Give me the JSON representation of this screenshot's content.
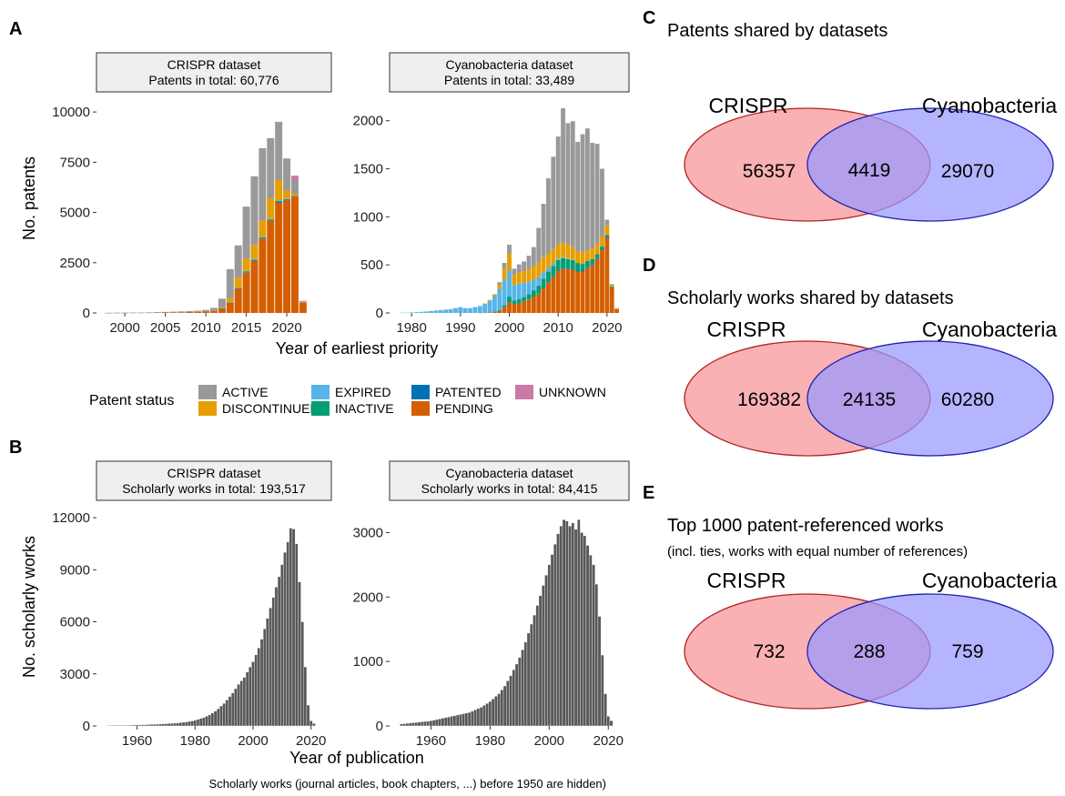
{
  "panel_letters": {
    "A": "A",
    "B": "B",
    "C": "C",
    "D": "D",
    "E": "E"
  },
  "patent_charts": {
    "ylabel": "No. patents",
    "xlabel": "Year of earliest priority",
    "statuses": [
      "ACTIVE",
      "DISCONTINUED",
      "EXPIRED",
      "INACTIVE",
      "PATENTED",
      "PENDING",
      "UNKNOWN"
    ],
    "status_colors": {
      "ACTIVE": "#999999",
      "DISCONTINUED": "#E69F00",
      "EXPIRED": "#56B4E9",
      "INACTIVE": "#009E73",
      "PATENTED": "#0072B2",
      "PENDING": "#D55E00",
      "UNKNOWN": "#CC79A7"
    }
  },
  "legend": {
    "title": "Patent status",
    "items": [
      {
        "key": "ACTIVE",
        "label": "ACTIVE"
      },
      {
        "key": "DISCONTINUED",
        "label": "DISCONTINUED"
      },
      {
        "key": "EXPIRED",
        "label": "EXPIRED"
      },
      {
        "key": "INACTIVE",
        "label": "INACTIVE"
      },
      {
        "key": "PATENTED",
        "label": "PATENTED"
      },
      {
        "key": "PENDING",
        "label": "PENDING"
      },
      {
        "key": "UNKNOWN",
        "label": "UNKNOWN"
      }
    ]
  },
  "works_charts": {
    "ylabel": "No. scholarly works",
    "xlabel": "Year of publication",
    "note": "Scholarly works (journal articles, book chapters, ...) before 1950 are hidden)"
  },
  "chart_data": [
    {
      "id": "A-crispr",
      "type": "bar",
      "stacked": true,
      "strip": [
        "CRISPR dataset",
        "Patents in total: 60,776"
      ],
      "xlim": [
        1996.5,
        2025.5
      ],
      "xticks": [
        2000,
        2005,
        2010,
        2015,
        2020
      ],
      "ylim": [
        0,
        11000
      ],
      "yticks": [
        0,
        2500,
        5000,
        7500,
        10000
      ],
      "x": [
        1998,
        1999,
        2000,
        2001,
        2002,
        2003,
        2004,
        2005,
        2006,
        2007,
        2008,
        2009,
        2010,
        2011,
        2012,
        2013,
        2014,
        2015,
        2016,
        2017,
        2018,
        2019,
        2020,
        2021,
        2022
      ],
      "series": [
        {
          "name": "PENDING",
          "values": [
            2,
            4,
            6,
            8,
            10,
            14,
            18,
            22,
            28,
            35,
            45,
            55,
            70,
            100,
            220,
            500,
            1200,
            2000,
            2600,
            3700,
            4600,
            5500,
            5600,
            5800,
            500
          ]
        },
        {
          "name": "PATENTED",
          "values": [
            0,
            0,
            0,
            0,
            0,
            0,
            0,
            0,
            0,
            0,
            0,
            0,
            0,
            0,
            5,
            10,
            20,
            30,
            30,
            30,
            30,
            40,
            40,
            10,
            0
          ]
        },
        {
          "name": "INACTIVE",
          "values": [
            0,
            0,
            0,
            0,
            0,
            0,
            0,
            0,
            0,
            0,
            0,
            0,
            0,
            0,
            5,
            10,
            20,
            30,
            30,
            30,
            30,
            30,
            30,
            10,
            0
          ]
        },
        {
          "name": "EXPIRED",
          "values": [
            0,
            0,
            0,
            0,
            0,
            0,
            0,
            0,
            0,
            0,
            0,
            0,
            0,
            0,
            0,
            10,
            20,
            30,
            40,
            40,
            40,
            40,
            20,
            10,
            0
          ]
        },
        {
          "name": "DISCONTINUED",
          "values": [
            0,
            0,
            0,
            0,
            0,
            0,
            0,
            0,
            0,
            0,
            0,
            0,
            0,
            0,
            30,
            200,
            500,
            600,
            700,
            800,
            1000,
            1000,
            400,
            100,
            20
          ]
        },
        {
          "name": "ACTIVE",
          "values": [
            5,
            8,
            10,
            12,
            15,
            20,
            25,
            30,
            35,
            40,
            45,
            55,
            80,
            150,
            450,
            1450,
            1600,
            2600,
            3400,
            3600,
            3000,
            2900,
            1600,
            700,
            30
          ]
        },
        {
          "name": "UNKNOWN",
          "values": [
            0,
            0,
            0,
            0,
            0,
            0,
            0,
            0,
            0,
            0,
            0,
            0,
            0,
            0,
            0,
            0,
            0,
            0,
            0,
            0,
            0,
            0,
            0,
            200,
            50
          ]
        }
      ]
    },
    {
      "id": "A-cyano",
      "type": "bar",
      "stacked": true,
      "strip": [
        "Cyanobacteria dataset",
        "Patents in total: 33,489"
      ],
      "xlim": [
        1975.5,
        2024.5
      ],
      "xticks": [
        1980,
        1990,
        2000,
        2010,
        2020
      ],
      "ylim": [
        0,
        2300
      ],
      "yticks": [
        0,
        500,
        1000,
        1500,
        2000
      ],
      "x": [
        1978,
        1979,
        1980,
        1981,
        1982,
        1983,
        1984,
        1985,
        1986,
        1987,
        1988,
        1989,
        1990,
        1991,
        1992,
        1993,
        1994,
        1995,
        1996,
        1997,
        1998,
        1999,
        2000,
        2001,
        2002,
        2003,
        2004,
        2005,
        2006,
        2007,
        2008,
        2009,
        2010,
        2011,
        2012,
        2013,
        2014,
        2015,
        2016,
        2017,
        2018,
        2019,
        2020,
        2021,
        2022
      ],
      "series": [
        {
          "name": "PENDING",
          "values": [
            0,
            0,
            0,
            0,
            0,
            0,
            0,
            0,
            0,
            0,
            0,
            0,
            0,
            0,
            0,
            0,
            2,
            4,
            6,
            10,
            20,
            60,
            110,
            90,
            100,
            120,
            140,
            170,
            200,
            260,
            320,
            380,
            440,
            460,
            460,
            450,
            430,
            430,
            470,
            500,
            560,
            650,
            780,
            260,
            40
          ]
        },
        {
          "name": "PATENTED",
          "values": [
            0,
            0,
            0,
            0,
            0,
            0,
            0,
            0,
            0,
            0,
            0,
            0,
            0,
            0,
            0,
            0,
            0,
            0,
            0,
            0,
            0,
            0,
            0,
            0,
            5,
            5,
            5,
            5,
            5,
            5,
            10,
            10,
            10,
            10,
            10,
            10,
            10,
            10,
            10,
            10,
            10,
            10,
            10,
            5,
            0
          ]
        },
        {
          "name": "INACTIVE",
          "values": [
            0,
            0,
            0,
            0,
            0,
            0,
            0,
            0,
            0,
            0,
            0,
            0,
            0,
            0,
            0,
            0,
            0,
            0,
            0,
            5,
            10,
            20,
            60,
            40,
            40,
            40,
            50,
            60,
            80,
            90,
            100,
            100,
            100,
            100,
            90,
            90,
            80,
            70,
            60,
            50,
            40,
            30,
            20,
            5,
            0
          ]
        },
        {
          "name": "EXPIRED",
          "values": [
            2,
            3,
            5,
            8,
            12,
            15,
            20,
            25,
            30,
            35,
            40,
            50,
            60,
            50,
            50,
            60,
            70,
            90,
            120,
            160,
            220,
            260,
            270,
            160,
            160,
            150,
            130,
            110,
            90,
            70,
            40,
            25,
            15,
            10,
            5,
            5,
            0,
            0,
            0,
            0,
            0,
            0,
            0,
            0,
            0
          ]
        },
        {
          "name": "DISCONTINUED",
          "values": [
            0,
            0,
            0,
            0,
            0,
            0,
            0,
            0,
            0,
            0,
            0,
            0,
            0,
            0,
            0,
            0,
            0,
            5,
            10,
            20,
            40,
            120,
            180,
            100,
            120,
            120,
            130,
            140,
            150,
            160,
            150,
            150,
            150,
            150,
            150,
            130,
            120,
            120,
            110,
            110,
            110,
            110,
            100,
            20,
            5
          ]
        },
        {
          "name": "ACTIVE",
          "values": [
            0,
            0,
            0,
            0,
            0,
            0,
            0,
            0,
            0,
            0,
            0,
            0,
            0,
            0,
            0,
            0,
            0,
            0,
            0,
            0,
            30,
            60,
            90,
            70,
            80,
            100,
            140,
            200,
            360,
            550,
            780,
            960,
            1120,
            1400,
            1260,
            1310,
            1140,
            1230,
            1270,
            1100,
            1040,
            700,
            60,
            10,
            5
          ]
        },
        {
          "name": "UNKNOWN",
          "values": [
            0,
            0,
            0,
            0,
            0,
            0,
            0,
            0,
            0,
            0,
            0,
            0,
            0,
            0,
            0,
            0,
            0,
            0,
            0,
            0,
            0,
            0,
            0,
            0,
            0,
            0,
            0,
            0,
            0,
            0,
            0,
            0,
            0,
            0,
            0,
            0,
            0,
            0,
            0,
            0,
            0,
            0,
            0,
            0,
            0
          ]
        }
      ]
    },
    {
      "id": "B-crispr",
      "type": "bar",
      "strip": [
        "CRISPR dataset",
        "Scholarly works in total: 193,517"
      ],
      "xlim": [
        1946,
        2027
      ],
      "xticks": [
        1960,
        1980,
        2000,
        2020
      ],
      "ylim": [
        0,
        13000
      ],
      "yticks": [
        0,
        3000,
        6000,
        9000,
        12000
      ],
      "x_start": 1950,
      "values": [
        30,
        30,
        35,
        35,
        40,
        40,
        45,
        45,
        50,
        55,
        60,
        65,
        70,
        75,
        80,
        90,
        95,
        100,
        110,
        120,
        130,
        140,
        150,
        160,
        170,
        190,
        210,
        230,
        260,
        290,
        330,
        380,
        430,
        480,
        560,
        640,
        740,
        860,
        990,
        1150,
        1300,
        1500,
        1700,
        1900,
        2150,
        2400,
        2600,
        2800,
        3100,
        3400,
        3700,
        4100,
        4500,
        5000,
        5600,
        6200,
        6800,
        7400,
        8000,
        8600,
        9300,
        10000,
        10600,
        11400,
        11350,
        10500,
        8300,
        6000,
        3400,
        1200,
        300,
        150
      ]
    },
    {
      "id": "B-cyano",
      "type": "bar",
      "strip": [
        "Cyanobacteria dataset",
        "Scholarly works in total: 84,415"
      ],
      "xlim": [
        1946,
        2027
      ],
      "xticks": [
        1960,
        1980,
        2000,
        2020
      ],
      "ylim": [
        0,
        3500
      ],
      "yticks": [
        0,
        1000,
        2000,
        3000
      ],
      "x_start": 1950,
      "values": [
        30,
        35,
        40,
        45,
        50,
        55,
        60,
        65,
        70,
        75,
        80,
        90,
        100,
        110,
        120,
        130,
        140,
        150,
        160,
        170,
        180,
        190,
        200,
        210,
        230,
        250,
        270,
        290,
        320,
        350,
        380,
        420,
        460,
        500,
        560,
        620,
        700,
        780,
        870,
        960,
        1060,
        1180,
        1300,
        1440,
        1580,
        1720,
        1870,
        2020,
        2180,
        2340,
        2500,
        2660,
        2820,
        2980,
        3100,
        3200,
        3180,
        3100,
        3150,
        3050,
        3200,
        3000,
        2950,
        2800,
        2650,
        2500,
        2200,
        1700,
        1100,
        500,
        150,
        80
      ]
    }
  ],
  "venns": [
    {
      "id": "C",
      "title": "Patents shared by datasets",
      "subtitle": "",
      "left_label": "CRISPR",
      "right_label": "Cyanobacteria",
      "left_only": "56357",
      "both": "4419",
      "right_only": "29070"
    },
    {
      "id": "D",
      "title": "Scholarly works shared by datasets",
      "subtitle": "",
      "left_label": "CRISPR",
      "right_label": "Cyanobacteria",
      "left_only": "169382",
      "both": "24135",
      "right_only": "60280"
    },
    {
      "id": "E",
      "title": "Top 1000 patent-referenced works",
      "subtitle": "(incl. ties, works with equal number of references)",
      "left_label": "CRISPR",
      "right_label": "Cyanobacteria",
      "left_only": "732",
      "both": "288",
      "right_only": "759"
    }
  ]
}
